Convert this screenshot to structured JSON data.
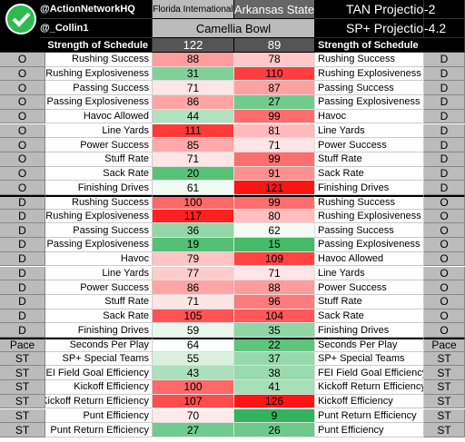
{
  "header": {
    "handles": [
      "@ActionNetworkHQ",
      "@_Collin1"
    ],
    "teams": [
      "Florida International",
      "Arkansas State"
    ],
    "game": "Camellia Bowl",
    "sos_label_left": "Strength of Schedule",
    "sos": [
      122,
      89
    ],
    "sos_label_right": "Strength of Schedule",
    "projections": [
      {
        "label": "TAN Projection",
        "value": -2
      },
      {
        "label": "SP+ Projection",
        "value": -4.2
      }
    ]
  },
  "rows": [
    [
      "O",
      "Rushing Success",
      88,
      78,
      "Rushing Success",
      "D"
    ],
    [
      "O",
      "Rushing Explosiveness",
      31,
      110,
      "Rushing Explosiveness",
      "D"
    ],
    [
      "O",
      "Passing Success",
      71,
      87,
      "Passing Success",
      "D"
    ],
    [
      "O",
      "Passing Explosiveness",
      86,
      27,
      "Passing Explosiveness",
      "D"
    ],
    [
      "O",
      "Havoc Allowed",
      44,
      99,
      "Havoc",
      "D"
    ],
    [
      "O",
      "Line Yards",
      111,
      81,
      "Line Yards",
      "D"
    ],
    [
      "O",
      "Power Success",
      85,
      71,
      "Power Success",
      "D"
    ],
    [
      "O",
      "Stuff Rate",
      71,
      99,
      "Stuff Rate",
      "D"
    ],
    [
      "O",
      "Sack Rate",
      20,
      91,
      "Sack Rate",
      "D"
    ],
    [
      "O",
      "Finishing Drives",
      61,
      121,
      "Finishing Drives",
      "D"
    ],
    [
      "D",
      "Rushing Success",
      100,
      99,
      "Rushing Success",
      "O"
    ],
    [
      "D",
      "Rushing Explosiveness",
      117,
      80,
      "Rushing Explosiveness",
      "O"
    ],
    [
      "D",
      "Passing Success",
      36,
      62,
      "Passing Success",
      "O"
    ],
    [
      "D",
      "Passing Explosiveness",
      19,
      15,
      "Passing Explosiveness",
      "O"
    ],
    [
      "D",
      "Havoc",
      79,
      109,
      "Havoc Allowed",
      "O"
    ],
    [
      "D",
      "Line Yards",
      77,
      71,
      "Line Yards",
      "O"
    ],
    [
      "D",
      "Power Success",
      86,
      88,
      "Power Success",
      "O"
    ],
    [
      "D",
      "Stuff Rate",
      71,
      96,
      "Stuff Rate",
      "O"
    ],
    [
      "D",
      "Sack Rate",
      105,
      104,
      "Sack Rate",
      "O"
    ],
    [
      "D",
      "Finishing Drives",
      59,
      35,
      "Finishing Drives",
      "O"
    ],
    [
      "Pace",
      "Seconds Per Play",
      64,
      22,
      "Seconds Per Play",
      "Pace"
    ],
    [
      "ST",
      "SP+ Special Teams",
      55,
      37,
      "SP+ Special Teams",
      "ST"
    ],
    [
      "ST",
      "FEI Field Goal Efficiency",
      43,
      38,
      "FEI Field Goal Efficiency",
      "ST"
    ],
    [
      "ST",
      "Kickoff Efficiency",
      100,
      41,
      "Kickoff Return Efficiency",
      "ST"
    ],
    [
      "ST",
      "Kickoff Return Efficiency",
      107,
      126,
      "Kickoff Efficiency",
      "ST"
    ],
    [
      "ST",
      "Punt Efficiency",
      70,
      9,
      "Punt Return Efficiency",
      "ST"
    ],
    [
      "ST",
      "Punt Return Efficiency",
      27,
      26,
      "Punt Efficiency",
      "ST"
    ]
  ]
}
